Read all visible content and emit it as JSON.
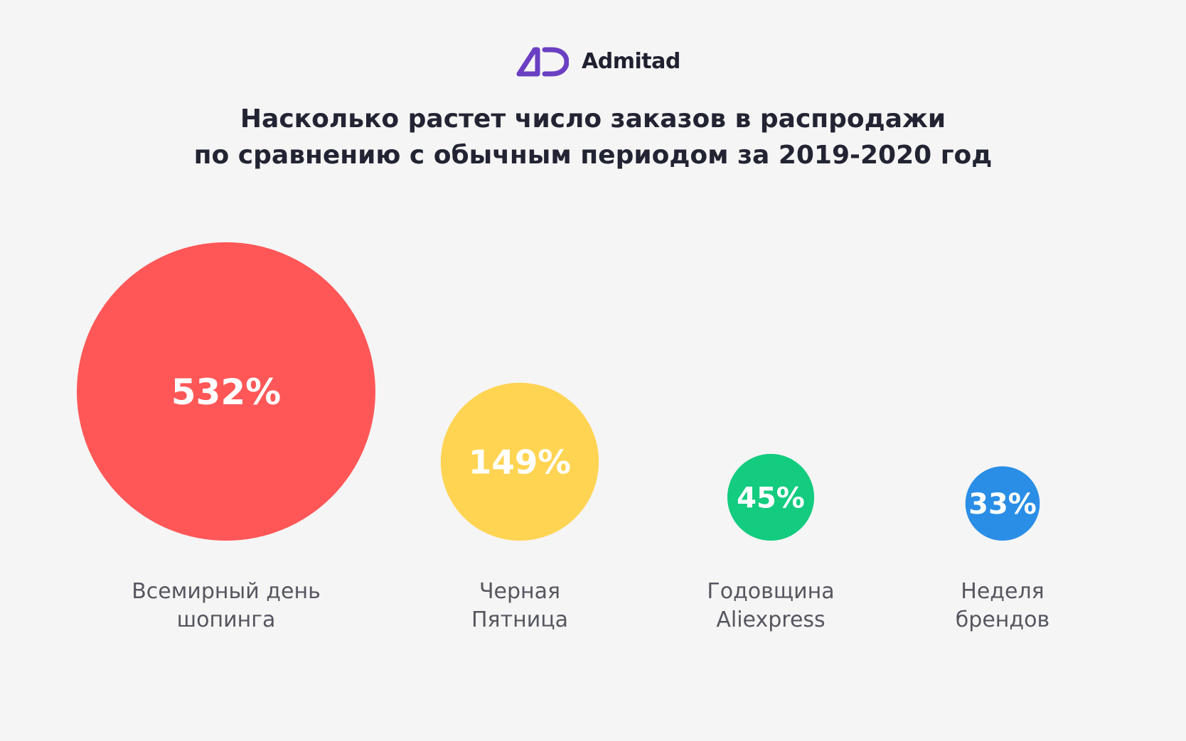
{
  "brand": {
    "name": "Admitad",
    "logo_icon": "admitad-ad-logo-icon",
    "color": "#6a3fc2"
  },
  "title": {
    "line1": "Насколько растет число заказов в распродажи",
    "line2": "по сравнению с обычным периодом за 2019-2020 год"
  },
  "chart_data": {
    "type": "bubble",
    "title": "Насколько растет число заказов в распродажи по сравнению с обычным периодом за 2019-2020 год",
    "unit": "%",
    "categories": [
      [
        "Всемирный день",
        "шопинга"
      ],
      [
        "Черная",
        "Пятница"
      ],
      [
        "Годовщина",
        "Aliexpress"
      ],
      [
        "Неделя",
        "брендов"
      ]
    ],
    "values": [
      532,
      149,
      45,
      33
    ],
    "labels": [
      "532%",
      "149%",
      "45%",
      "33%"
    ],
    "colors": [
      "#ff5757",
      "#ffd452",
      "#13cc80",
      "#2a8ee6"
    ],
    "grid": false,
    "legend": "none"
  }
}
